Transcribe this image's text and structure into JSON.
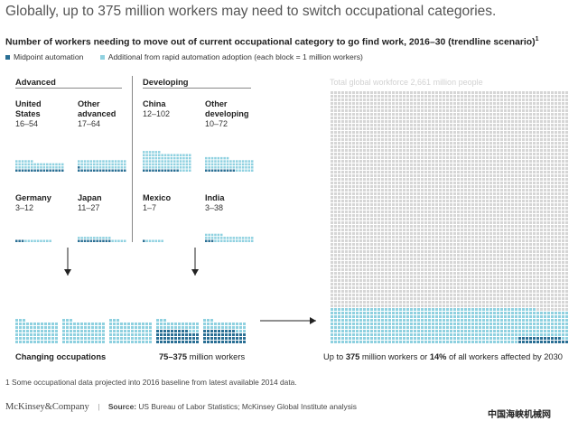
{
  "headline": "Globally, up to 375 million workers may need to switch occupational categories.",
  "chart_data": {
    "type": "waffle",
    "title": "Number of workers needing to move out of current occupational category to go find work, 2016–30 (trendline scenario)",
    "title_footnote_marker": "1",
    "legend": [
      {
        "label": "Midpoint automation",
        "color": "#2a6f94"
      },
      {
        "label": "Additional from rapid automation adoption (each block = 1 million workers)",
        "color": "#8fd1e0"
      }
    ],
    "groups": [
      {
        "label": "Advanced",
        "countries": [
          {
            "name_lines": [
              "United",
              "States"
            ],
            "range": "16–54",
            "low": 16,
            "high": 54
          },
          {
            "name_lines": [
              "Other",
              "advanced"
            ],
            "range": "17–64",
            "low": 17,
            "high": 64
          },
          {
            "name_lines": [
              "Germany"
            ],
            "range": "3–12",
            "low": 3,
            "high": 12
          },
          {
            "name_lines": [
              "Japan"
            ],
            "range": "11–27",
            "low": 11,
            "high": 27
          }
        ]
      },
      {
        "label": "Developing",
        "countries": [
          {
            "name_lines": [
              "China"
            ],
            "range": "12–102",
            "low": 12,
            "high": 102
          },
          {
            "name_lines": [
              "Other",
              "developing"
            ],
            "range": "10–72",
            "low": 10,
            "high": 72
          },
          {
            "name_lines": [
              "Mexico"
            ],
            "range": "1–7",
            "low": 1,
            "high": 7
          },
          {
            "name_lines": [
              "India"
            ],
            "range": "3–38",
            "low": 3,
            "high": 38
          }
        ]
      }
    ],
    "changing_occupations": {
      "label": "Changing occupations",
      "range": "75–375",
      "unit": "million workers",
      "low": 75,
      "high": 375
    },
    "global_workforce": {
      "label": "Total global workforce 2,661 million people",
      "total": 2661,
      "low": 75,
      "high": 375
    },
    "colors": {
      "midpoint": "#2a6f94",
      "additional": "#8fd1e0",
      "workforce": "#d6d6d6",
      "arrow": "#222222"
    }
  },
  "bottom_left": {
    "label": "Changing occupations",
    "range": "75–375",
    "unit": " million workers"
  },
  "bottom_right": {
    "pre": "Up to ",
    "n1": "375",
    "mid": " million workers or ",
    "n2": "14%",
    "post": " of all workers affected by 2030"
  },
  "footnote": "1 Some occupational data projected into 2016 baseline from latest available 2014 data.",
  "brand": "McKinsey&Company",
  "source_label": "Source:",
  "source": " US Bureau of Labor Statistics; McKinsey Global Institute analysis",
  "watermark": "中国海峡机械网"
}
